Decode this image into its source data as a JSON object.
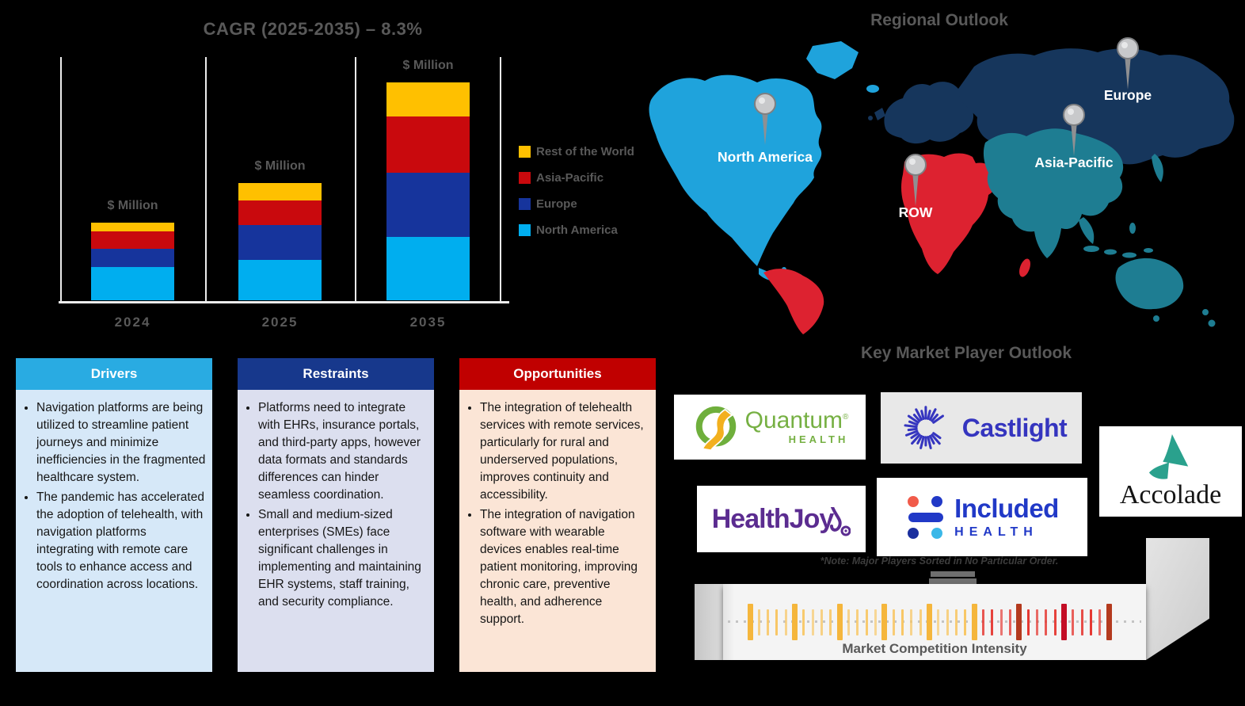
{
  "chart": {
    "title": "CAGR (2025-2035) – 8.3%",
    "bar_top_label": "$ Million"
  },
  "chart_data": {
    "type": "bar",
    "stacked": true,
    "title": "CAGR (2025-2035) – 8.3%",
    "categories": [
      "2024",
      "2025",
      "2035"
    ],
    "series": [
      {
        "name": "North America",
        "color": "#00AEEF",
        "values": [
          42,
          51,
          80
        ]
      },
      {
        "name": "Europe",
        "color": "#16349C",
        "values": [
          23,
          44,
          81
        ]
      },
      {
        "name": "Asia-Pacific",
        "color": "#C9090D",
        "values": [
          22,
          31,
          71
        ]
      },
      {
        "name": "Rest of the World",
        "color": "#FFC000",
        "values": [
          11,
          22,
          43
        ]
      }
    ],
    "value_labels_shown": [
      "$ Million",
      "$ Million",
      "$ Million"
    ],
    "xlabel": "",
    "ylabel": "",
    "axis_numbers_visible": false,
    "units": "relative segment heights in px; numeric axis values are not shown in the figure",
    "legend_position": "right",
    "grid": false
  },
  "legend": {
    "items": [
      {
        "label": "Rest of the World",
        "color": "#FFC000"
      },
      {
        "label": "Asia-Pacific",
        "color": "#C9090D"
      },
      {
        "label": "Europe",
        "color": "#16349C"
      },
      {
        "label": "North America",
        "color": "#00AEEF"
      }
    ]
  },
  "map": {
    "title": "Regional Outlook",
    "pins": [
      {
        "label": "North America"
      },
      {
        "label": "Europe"
      },
      {
        "label": "Asia-Pacific"
      },
      {
        "label": "ROW"
      }
    ],
    "region_colors": {
      "north_america": "#1FA3DC",
      "row": "#DD2230",
      "europe_russia": "#16365C",
      "asia_pacific": "#1E7D92"
    }
  },
  "boxes": {
    "drivers": {
      "title": "Drivers",
      "bullets": [
        "Navigation platforms are being utilized to streamline patient journeys and minimize inefficiencies in the fragmented healthcare system.",
        "The pandemic has accelerated the adoption of telehealth, with navigation platforms integrating with remote care tools to enhance access and coordination across locations."
      ]
    },
    "restraints": {
      "title": "Restraints",
      "bullets": [
        "Platforms need to integrate with EHRs, insurance portals, and third-party apps, however data formats and standards differences can hinder seamless coordination.",
        "Small and medium-sized enterprises (SMEs) face significant challenges in implementing and maintaining EHR systems, staff training, and security compliance."
      ]
    },
    "opportunities": {
      "title": "Opportunities",
      "bullets": [
        "The integration of telehealth services with remote services, particularly for rural and underserved populations, improves continuity and accessibility.",
        "The integration of navigation software with wearable devices enables real-time patient monitoring, improving chronic care, preventive health, and adherence support."
      ]
    }
  },
  "players": {
    "title": "Key Market Player Outlook",
    "note": "*Note: Major Players Sorted in No Particular Order.",
    "logos": [
      {
        "name": "Quantum Health",
        "text": "Quantum",
        "mark": "®",
        "subtext": "HEALTH"
      },
      {
        "name": "Castlight",
        "text": "Castlight"
      },
      {
        "name": "HealthJoy",
        "text": "HealthJoy"
      },
      {
        "name": "Included Health",
        "text": "Included",
        "subtext": "HEALTH"
      },
      {
        "name": "Accolade",
        "text": "Accolade"
      }
    ],
    "intensity": {
      "label": "Market Competition Intensity",
      "bar_count": 41,
      "thick_every": 5,
      "amber_last_index": 25,
      "start_x": 947,
      "step": 11.33,
      "colors": {
        "amber_thin": "#F8C766",
        "amber_thick": "#F5B63C",
        "red_thin": "#E53832",
        "red_thick": "#B43A1E",
        "red_thick_alt": "#C30D25"
      }
    }
  }
}
